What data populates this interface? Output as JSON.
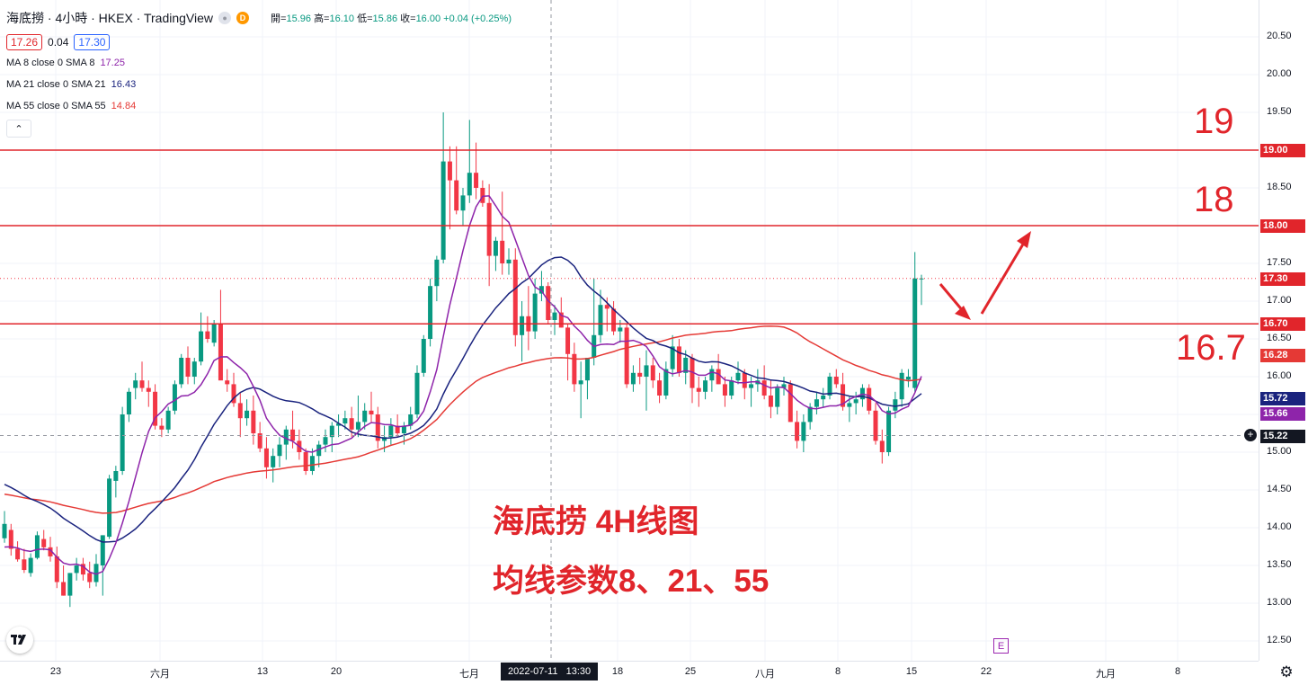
{
  "header": {
    "title": "海底撈 · 4小時 · HKEX · TradingView",
    "badge_d": "D",
    "ohlc": {
      "open_label": "開=",
      "open": "15.96",
      "high_label": "高=",
      "high": "16.10",
      "low_label": "低=",
      "low": "15.86",
      "close_label": "收=",
      "close": "16.00",
      "change": "+0.04 (+0.25%)"
    },
    "bid": "17.26",
    "spread": "0.04",
    "ask": "17.30",
    "ma_rows": [
      {
        "label": "MA 8 close 0 SMA 8",
        "value": "17.25",
        "color": "#8e24aa"
      },
      {
        "label": "MA 21 close 0 SMA 21",
        "value": "16.43",
        "color": "#1a237e"
      },
      {
        "label": "MA 55 close 0 SMA 55",
        "value": "14.84",
        "color": "#e53935"
      }
    ],
    "collapse_glyph": "⌃"
  },
  "annotations": {
    "level_19": "19",
    "level_18": "18",
    "level_167": "16.7",
    "caption_line1": "海底捞 4H线图",
    "caption_line2": "均线参数8、21、55"
  },
  "price_axis": {
    "ticks": [
      "20.50",
      "20.00",
      "19.50",
      "18.50",
      "17.50",
      "17.00",
      "16.50",
      "16.00",
      "15.00",
      "14.50",
      "14.00",
      "13.50",
      "13.00",
      "12.50"
    ],
    "badges": [
      {
        "value": "19.00",
        "color": "#e1252b"
      },
      {
        "value": "18.00",
        "color": "#e1252b"
      },
      {
        "value": "17.30",
        "color": "#e1252b"
      },
      {
        "value": "16.70",
        "color": "#e1252b"
      },
      {
        "value": "16.28",
        "color": "#e53935"
      },
      {
        "value": "15.72",
        "color": "#1a237e"
      },
      {
        "value": "15.66",
        "color": "#8e24aa"
      },
      {
        "value": "15.22",
        "color": "#131722"
      }
    ],
    "plus_icon": "+"
  },
  "time_axis": {
    "ticks": [
      {
        "label": "23"
      },
      {
        "label": "六月"
      },
      {
        "label": "13"
      },
      {
        "label": "20"
      },
      {
        "label": "七月"
      },
      {
        "label": "18"
      },
      {
        "label": "25"
      },
      {
        "label": "八月"
      },
      {
        "label": "8"
      },
      {
        "label": "15"
      },
      {
        "label": "22"
      },
      {
        "label": "九月"
      },
      {
        "label": "8"
      }
    ],
    "crosshair_date": "2022-07-11",
    "crosshair_time": "13:30",
    "earnings_marker": "E"
  },
  "chart_data": {
    "type": "candlestick",
    "price_range": [
      12.4,
      20.6
    ],
    "horizontal_levels": [
      19.0,
      18.0,
      16.7
    ],
    "crosshair_price": 15.22,
    "last_price": 17.3,
    "candles": [
      [
        13.86,
        14.22,
        13.8,
        14.05
      ],
      [
        13.97,
        14.05,
        13.63,
        13.72
      ],
      [
        13.72,
        13.82,
        13.55,
        13.58
      ],
      [
        13.58,
        13.72,
        13.4,
        13.44
      ],
      [
        13.4,
        13.66,
        13.35,
        13.6
      ],
      [
        13.6,
        13.95,
        13.58,
        13.9
      ],
      [
        13.85,
        13.97,
        13.7,
        13.74
      ],
      [
        13.74,
        13.88,
        13.55,
        13.62
      ],
      [
        13.62,
        13.75,
        13.2,
        13.28
      ],
      [
        13.28,
        13.5,
        13.1,
        13.1
      ],
      [
        13.1,
        13.4,
        12.95,
        13.4
      ],
      [
        13.4,
        13.6,
        13.3,
        13.5
      ],
      [
        13.52,
        13.6,
        13.3,
        13.38
      ],
      [
        13.4,
        13.55,
        13.2,
        13.28
      ],
      [
        13.28,
        13.65,
        13.22,
        13.52
      ],
      [
        13.5,
        13.9,
        13.1,
        13.9
      ],
      [
        13.88,
        14.7,
        13.85,
        14.65
      ],
      [
        14.62,
        14.82,
        14.4,
        14.75
      ],
      [
        14.75,
        15.6,
        14.7,
        15.5
      ],
      [
        15.5,
        15.85,
        15.4,
        15.8
      ],
      [
        15.85,
        16.05,
        15.7,
        15.95
      ],
      [
        15.95,
        16.2,
        15.8,
        15.85
      ],
      [
        15.85,
        15.95,
        15.6,
        15.8
      ],
      [
        15.8,
        15.9,
        15.3,
        15.35
      ],
      [
        15.35,
        15.45,
        15.2,
        15.3
      ],
      [
        15.3,
        15.6,
        15.25,
        15.55
      ],
      [
        15.55,
        15.95,
        15.5,
        15.9
      ],
      [
        15.9,
        16.3,
        15.85,
        16.25
      ],
      [
        16.25,
        16.4,
        15.9,
        16.0
      ],
      [
        16.0,
        16.25,
        15.9,
        16.2
      ],
      [
        16.2,
        16.85,
        16.15,
        16.6
      ],
      [
        16.6,
        16.8,
        16.45,
        16.5
      ],
      [
        16.45,
        16.75,
        16.4,
        16.7
      ],
      [
        16.7,
        17.15,
        16.0,
        15.95
      ],
      [
        15.95,
        16.1,
        15.8,
        15.9
      ],
      [
        15.9,
        16.05,
        15.6,
        15.65
      ],
      [
        15.65,
        15.8,
        15.2,
        15.45
      ],
      [
        15.45,
        15.7,
        15.35,
        15.55
      ],
      [
        15.55,
        15.75,
        15.1,
        15.25
      ],
      [
        15.25,
        15.4,
        15.0,
        15.05
      ],
      [
        15.05,
        15.2,
        14.65,
        14.8
      ],
      [
        14.8,
        15.05,
        14.6,
        14.95
      ],
      [
        14.95,
        15.2,
        14.8,
        15.1
      ],
      [
        15.1,
        15.35,
        14.9,
        15.3
      ],
      [
        15.3,
        15.55,
        15.05,
        15.15
      ],
      [
        15.15,
        15.3,
        14.9,
        15.0
      ],
      [
        15.0,
        15.05,
        14.7,
        14.75
      ],
      [
        14.75,
        15.05,
        14.7,
        14.95
      ],
      [
        14.95,
        15.15,
        14.8,
        15.1
      ],
      [
        15.1,
        15.3,
        15.0,
        15.2
      ],
      [
        15.2,
        15.4,
        15.0,
        15.35
      ],
      [
        15.35,
        15.5,
        15.2,
        15.38
      ],
      [
        15.38,
        15.55,
        15.3,
        15.45
      ],
      [
        15.45,
        15.6,
        15.2,
        15.3
      ],
      [
        15.3,
        15.75,
        15.2,
        15.4
      ],
      [
        15.4,
        15.65,
        15.3,
        15.55
      ],
      [
        15.55,
        15.8,
        15.4,
        15.5
      ],
      [
        15.5,
        15.6,
        15.05,
        15.15
      ],
      [
        15.15,
        15.35,
        15.0,
        15.2
      ],
      [
        15.2,
        15.45,
        15.1,
        15.35
      ],
      [
        15.35,
        15.5,
        15.2,
        15.25
      ],
      [
        15.25,
        15.4,
        15.1,
        15.35
      ],
      [
        15.35,
        15.6,
        15.3,
        15.5
      ],
      [
        15.5,
        16.15,
        15.45,
        16.05
      ],
      [
        16.05,
        16.55,
        16.0,
        16.5
      ],
      [
        16.5,
        17.3,
        16.4,
        17.2
      ],
      [
        17.2,
        17.6,
        17.0,
        17.55
      ],
      [
        17.55,
        19.5,
        17.5,
        18.85
      ],
      [
        18.85,
        19.05,
        17.95,
        18.6
      ],
      [
        18.6,
        19.05,
        18.15,
        18.2
      ],
      [
        18.2,
        18.5,
        18.0,
        18.4
      ],
      [
        18.4,
        19.4,
        18.3,
        18.7
      ],
      [
        18.7,
        19.1,
        18.35,
        18.5
      ],
      [
        18.5,
        18.6,
        18.25,
        18.3
      ],
      [
        18.3,
        18.55,
        17.2,
        17.6
      ],
      [
        17.6,
        17.85,
        17.4,
        17.8
      ],
      [
        17.8,
        18.45,
        17.35,
        17.5
      ],
      [
        17.5,
        17.7,
        17.35,
        17.55
      ],
      [
        17.55,
        17.7,
        16.4,
        16.55
      ],
      [
        16.55,
        17.0,
        16.2,
        16.8
      ],
      [
        16.8,
        17.2,
        16.35,
        16.6
      ],
      [
        16.6,
        17.3,
        16.5,
        17.1
      ],
      [
        17.1,
        17.4,
        17.0,
        17.2
      ],
      [
        17.2,
        17.25,
        16.7,
        16.75
      ],
      [
        16.75,
        16.95,
        16.55,
        16.85
      ],
      [
        16.85,
        17.05,
        16.65,
        16.65
      ],
      [
        16.65,
        16.7,
        15.95,
        16.3
      ],
      [
        16.3,
        16.45,
        15.8,
        15.9
      ],
      [
        15.9,
        16.2,
        15.45,
        15.95
      ],
      [
        15.95,
        16.25,
        15.7,
        16.25
      ],
      [
        16.25,
        17.3,
        16.15,
        16.55
      ],
      [
        16.55,
        17.15,
        16.45,
        16.95
      ],
      [
        16.95,
        17.05,
        16.6,
        16.9
      ],
      [
        16.9,
        17.0,
        16.55,
        16.6
      ],
      [
        16.6,
        16.75,
        16.45,
        16.65
      ],
      [
        16.65,
        16.7,
        15.85,
        15.9
      ],
      [
        15.9,
        16.15,
        15.8,
        16.05
      ],
      [
        16.05,
        16.25,
        15.9,
        16.0
      ],
      [
        16.0,
        16.35,
        15.55,
        16.15
      ],
      [
        16.15,
        16.25,
        15.85,
        15.95
      ],
      [
        15.95,
        16.05,
        15.65,
        15.75
      ],
      [
        15.75,
        16.2,
        15.7,
        16.1
      ],
      [
        16.1,
        16.55,
        16.0,
        16.4
      ],
      [
        16.4,
        16.5,
        16.0,
        16.05
      ],
      [
        16.05,
        16.35,
        15.9,
        16.25
      ],
      [
        16.25,
        16.3,
        15.65,
        15.85
      ],
      [
        15.85,
        16.0,
        15.6,
        15.8
      ],
      [
        15.8,
        16.0,
        15.7,
        15.95
      ],
      [
        15.95,
        16.15,
        15.8,
        16.1
      ],
      [
        16.1,
        16.3,
        15.9,
        15.9
      ],
      [
        15.9,
        16.0,
        15.6,
        15.75
      ],
      [
        15.75,
        16.0,
        15.7,
        15.95
      ],
      [
        15.95,
        16.2,
        15.9,
        16.05
      ],
      [
        16.05,
        16.1,
        15.7,
        15.85
      ],
      [
        15.85,
        16.0,
        15.6,
        15.9
      ],
      [
        15.9,
        16.1,
        15.8,
        15.95
      ],
      [
        15.95,
        16.15,
        15.7,
        15.75
      ],
      [
        15.75,
        15.95,
        15.45,
        15.6
      ],
      [
        15.6,
        15.9,
        15.5,
        15.85
      ],
      [
        15.85,
        16.0,
        15.75,
        15.9
      ],
      [
        15.9,
        15.95,
        15.4,
        15.4
      ],
      [
        15.4,
        15.55,
        15.05,
        15.15
      ],
      [
        15.15,
        15.5,
        15.0,
        15.4
      ],
      [
        15.4,
        15.65,
        15.3,
        15.6
      ],
      [
        15.6,
        15.8,
        15.5,
        15.7
      ],
      [
        15.7,
        15.85,
        15.6,
        15.75
      ],
      [
        15.75,
        16.05,
        15.7,
        16.0
      ],
      [
        16.0,
        16.1,
        15.85,
        15.9
      ],
      [
        15.9,
        16.05,
        15.55,
        15.6
      ],
      [
        15.6,
        15.75,
        15.4,
        15.65
      ],
      [
        15.65,
        15.8,
        15.5,
        15.7
      ],
      [
        15.7,
        15.9,
        15.6,
        15.85
      ],
      [
        15.85,
        15.9,
        15.5,
        15.55
      ],
      [
        15.55,
        15.65,
        15.1,
        15.15
      ],
      [
        15.15,
        15.3,
        14.85,
        15.0
      ],
      [
        15.0,
        15.6,
        14.95,
        15.55
      ],
      [
        15.55,
        15.8,
        15.45,
        15.7
      ],
      [
        15.7,
        16.1,
        15.6,
        16.05
      ],
      [
        15.96,
        16.1,
        15.86,
        16.0
      ],
      [
        15.85,
        17.65,
        15.8,
        17.3
      ],
      [
        17.3,
        17.35,
        16.95,
        17.3
      ]
    ]
  }
}
